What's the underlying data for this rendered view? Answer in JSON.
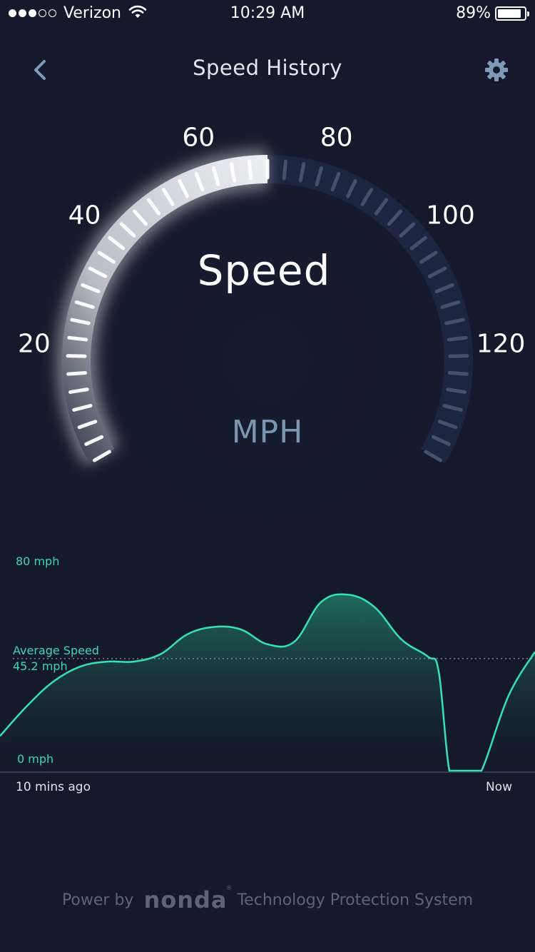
{
  "status_bar": {
    "carrier": "Verizon",
    "time": "10:29 AM",
    "battery": "89%",
    "signal_bars": [
      true,
      true,
      true,
      false,
      false
    ],
    "battery_level": 0.89
  },
  "nav": {
    "title": "Speed History",
    "back_icon": "chevron-left-icon",
    "settings_icon": "gear-icon"
  },
  "gauge": {
    "title": "Speed",
    "unit": "MPH",
    "scale_labels": [
      "20",
      "40",
      "60",
      "80",
      "100",
      "120"
    ],
    "current_value": 70,
    "min": 0,
    "max": 140
  },
  "chart_data": {
    "type": "area",
    "ylim": [
      0,
      80
    ],
    "y_tick_labels": [
      "80 mph",
      "0 mph"
    ],
    "average_label": "Average Speed",
    "average_value_label": "45.2 mph",
    "average_value": 45.2,
    "x_start_label": "10 mins ago",
    "x_end_label": "Now",
    "x": [
      0,
      0.05,
      0.1,
      0.15,
      0.2,
      0.25,
      0.3,
      0.35,
      0.4,
      0.45,
      0.5,
      0.55,
      0.6,
      0.65,
      0.7,
      0.75,
      0.8,
      0.82,
      0.84,
      0.86,
      0.88,
      0.9,
      0.95,
      1.0
    ],
    "values": [
      14,
      26,
      36,
      42,
      44,
      44,
      47,
      55,
      58,
      57,
      51,
      52,
      68,
      71,
      66,
      53,
      46,
      40,
      0,
      0,
      0,
      0,
      30,
      48
    ],
    "colors": {
      "line": "#36e2b4",
      "fill_top": "#1f6f60",
      "fill_bottom": "#141a2b"
    }
  },
  "footer": {
    "prefix": "Power by",
    "brand": "nonda",
    "brand_mark": "®",
    "suffix": "Technology Protection System"
  }
}
